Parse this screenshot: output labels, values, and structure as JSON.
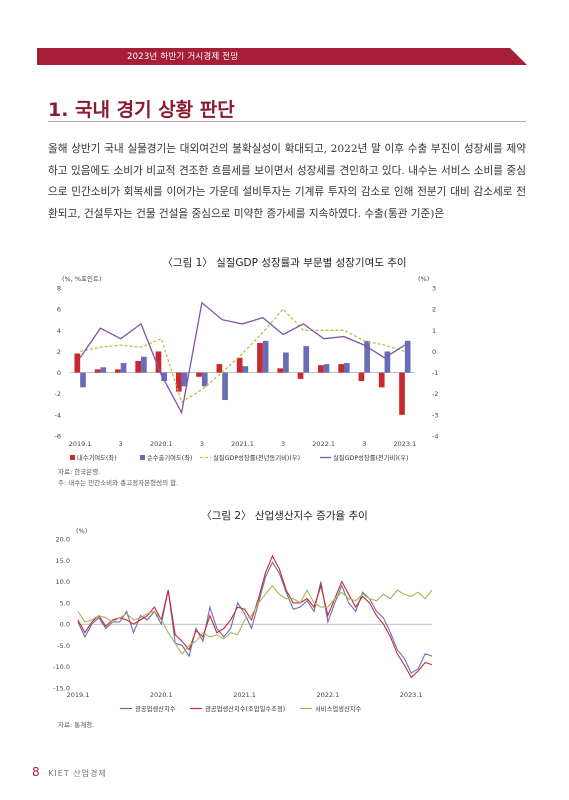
{
  "header": {
    "running_title": "2023년 하반기 거시경제 전망"
  },
  "section": {
    "title": "1. 국내 경기 상황 판단"
  },
  "body": {
    "paragraph": "올해 상반기 국내 실물경기는 대외여건의 불확실성이 확대되고, 2022년 말 이후 수출 부진이 성장세를 제약하고 있음에도 소비가 비교적 견조한 흐름세를 보이면서 성장세를 견인하고 있다. 내수는 서비스 소비를 중심으로 민간소비가 회복세를 이어가는 가운데 설비투자는 기계류 투자의 감소로 인해 전분기 대비 감소세로 전환되고, 건설투자는 건물 건설을 중심으로 미약한 증가세를 지속하였다. 수출(통관 기준)은"
  },
  "figure1": {
    "title": "〈그림 1〉 실질GDP 성장률과 부문별 성장기여도 추이",
    "source": "자료: 한국은행.",
    "note": "주: 내수는 민간소비와 총고정자본형성의 합."
  },
  "figure2": {
    "title": "〈그림 2〉 산업생산지수 증가율 추이",
    "source": "자료: 통계청."
  },
  "footer": {
    "page": "8",
    "publication": "KIET 산업경제"
  },
  "chart_data": [
    {
      "type": "bar",
      "title": "〈그림 1〉 실질GDP 성장률과 부문별 성장기여도 추이",
      "left_unit": "(%, %포인트)",
      "right_unit": "(%)",
      "ylim_left": [
        -6,
        8
      ],
      "ylim_right": [
        -4,
        3
      ],
      "yticks_left": [
        8,
        6,
        4,
        2,
        0,
        -2,
        -4,
        -6
      ],
      "yticks_right": [
        3,
        2,
        1,
        0,
        -1,
        -2,
        -3,
        -4
      ],
      "x_tick_labels": [
        "2019.1",
        "3",
        "2020.1",
        "3",
        "2021.1",
        "3",
        "2022.1",
        "3",
        "2023.1"
      ],
      "categories": [
        "2019Q1",
        "2019Q2",
        "2019Q3",
        "2019Q4",
        "2020Q1",
        "2020Q2",
        "2020Q3",
        "2020Q4",
        "2021Q1",
        "2021Q2",
        "2021Q3",
        "2021Q4",
        "2022Q1",
        "2022Q2",
        "2022Q3",
        "2022Q4",
        "2023Q1"
      ],
      "series": [
        {
          "name": "내수기여도(좌)",
          "kind": "bar",
          "axis": "left",
          "color": "#c8282e",
          "values": [
            1.8,
            0.3,
            0.3,
            1.1,
            2.0,
            -1.8,
            -0.4,
            0.8,
            1.4,
            2.8,
            0.4,
            -0.6,
            0.7,
            0.8,
            -0.8,
            -1.4,
            -4.0
          ]
        },
        {
          "name": "순수출기여도(좌)",
          "kind": "bar",
          "axis": "left",
          "color": "#6a6cb8",
          "values": [
            -1.4,
            0.5,
            0.9,
            1.5,
            -0.8,
            -1.3,
            -1.3,
            -2.6,
            0.6,
            3.0,
            1.9,
            2.5,
            0.8,
            0.9,
            3.0,
            2.0,
            3.0
          ]
        },
        {
          "name": "실질GDP성장률(전년동기비)(우)",
          "kind": "line",
          "axis": "right",
          "color": "#b6c24a",
          "dashed": true,
          "values": [
            0.0,
            0.2,
            0.3,
            0.2,
            0.6,
            -2.4,
            -1.8,
            -1.0,
            -0.1,
            0.9,
            2.0,
            1.0,
            1.0,
            1.0,
            0.5,
            0.3,
            0.0
          ]
        },
        {
          "name": "실질GDP성장률(전기비)(우)",
          "kind": "line",
          "axis": "right",
          "color": "#8055a8",
          "values": [
            -0.3,
            1.1,
            0.6,
            1.3,
            -1.1,
            -2.9,
            2.3,
            1.5,
            1.3,
            1.6,
            0.8,
            1.3,
            0.6,
            0.7,
            0.3,
            -0.3,
            0.3
          ]
        }
      ]
    },
    {
      "type": "line",
      "title": "〈그림 2〉 산업생산지수 증가율 추이",
      "unit": "(%)",
      "ylim": [
        -15,
        20
      ],
      "yticks": [
        "20.0",
        "15.0",
        "10.0",
        "5.0",
        "0.0",
        "-5.0",
        "-10.0",
        "-15.0"
      ],
      "yticks_values": [
        20,
        15,
        10,
        5,
        0,
        -5,
        -10,
        -15
      ],
      "x_tick_labels": [
        "2019.1",
        "2020.1",
        "2021.1",
        "2022.1",
        "2023.1"
      ],
      "series": [
        {
          "name": "광공업생산지수",
          "color": "#6a6cb8",
          "values": [
            0.5,
            -3.0,
            0.0,
            1.5,
            -1.0,
            0.5,
            0.5,
            3.0,
            -2.0,
            2.0,
            1.0,
            3.0,
            0.0,
            8.0,
            -4.5,
            -5.0,
            -7.5,
            -1.0,
            -4.0,
            4.0,
            -1.0,
            -3.0,
            -1.0,
            5.0,
            2.5,
            -1.0,
            5.0,
            11.0,
            14.5,
            12.0,
            7.5,
            3.5,
            4.0,
            5.5,
            3.0,
            10.0,
            0.5,
            5.0,
            9.0,
            5.0,
            3.0,
            7.5,
            6.0,
            3.0,
            1.5,
            -2.0,
            -6.0,
            -8.0,
            -11.5,
            -10.5,
            -7.0,
            -7.5
          ]
        },
        {
          "name": "광공업생산지수(조업일수조정)",
          "color": "#c8282e",
          "values": [
            1.0,
            -2.0,
            0.5,
            2.0,
            -0.5,
            1.0,
            1.5,
            1.0,
            0.0,
            1.0,
            2.0,
            4.0,
            1.0,
            8.0,
            -2.5,
            -4.0,
            -6.0,
            -1.5,
            -3.0,
            2.0,
            -2.0,
            -1.0,
            1.0,
            4.0,
            3.5,
            1.0,
            6.0,
            12.0,
            16.0,
            13.0,
            8.0,
            5.0,
            5.0,
            6.0,
            4.0,
            9.0,
            2.0,
            6.0,
            10.0,
            7.0,
            4.0,
            6.5,
            5.0,
            2.0,
            0.0,
            -3.0,
            -7.0,
            -9.5,
            -12.5,
            -11.0,
            -9.0,
            -9.5
          ]
        },
        {
          "name": "서비스업생산지수",
          "color": "#a6b55a",
          "values": [
            3.0,
            0.5,
            1.0,
            2.0,
            1.5,
            0.5,
            1.5,
            2.5,
            1.0,
            1.5,
            2.5,
            3.0,
            1.0,
            -2.0,
            -4.5,
            -7.0,
            -5.0,
            -4.0,
            -2.0,
            -3.0,
            -2.5,
            -3.5,
            -2.0,
            -2.5,
            1.0,
            2.0,
            5.0,
            7.0,
            9.0,
            7.0,
            6.0,
            6.0,
            5.0,
            8.0,
            5.0,
            4.0,
            4.0,
            6.0,
            7.5,
            6.0,
            5.5,
            7.0,
            6.0,
            5.5,
            7.0,
            6.0,
            8.0,
            7.0,
            6.5,
            7.5,
            6.0,
            8.0
          ]
        }
      ]
    }
  ]
}
